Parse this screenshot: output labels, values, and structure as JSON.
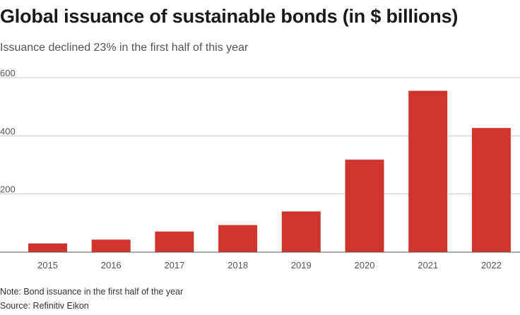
{
  "title": "Global issuance of sustainable bonds (in $ billions)",
  "subtitle": "Issuance declined 23% in the first half of this year",
  "note": "Note: Bond issuance in the first half of the year",
  "source": "Source: Refinitiv Eikon",
  "colors": {
    "bar": "#d0342c",
    "grid": "#cccccc",
    "axis": "#555555"
  },
  "chart_data": {
    "type": "bar",
    "categories": [
      "2015",
      "2016",
      "2017",
      "2018",
      "2019",
      "2020",
      "2021",
      "2022"
    ],
    "values": [
      30,
      43,
      71,
      93,
      140,
      318,
      555,
      427
    ],
    "ylim": [
      0,
      600
    ],
    "yticks": [
      200,
      400,
      600
    ],
    "grid": true,
    "xlabel": "",
    "ylabel": ""
  }
}
